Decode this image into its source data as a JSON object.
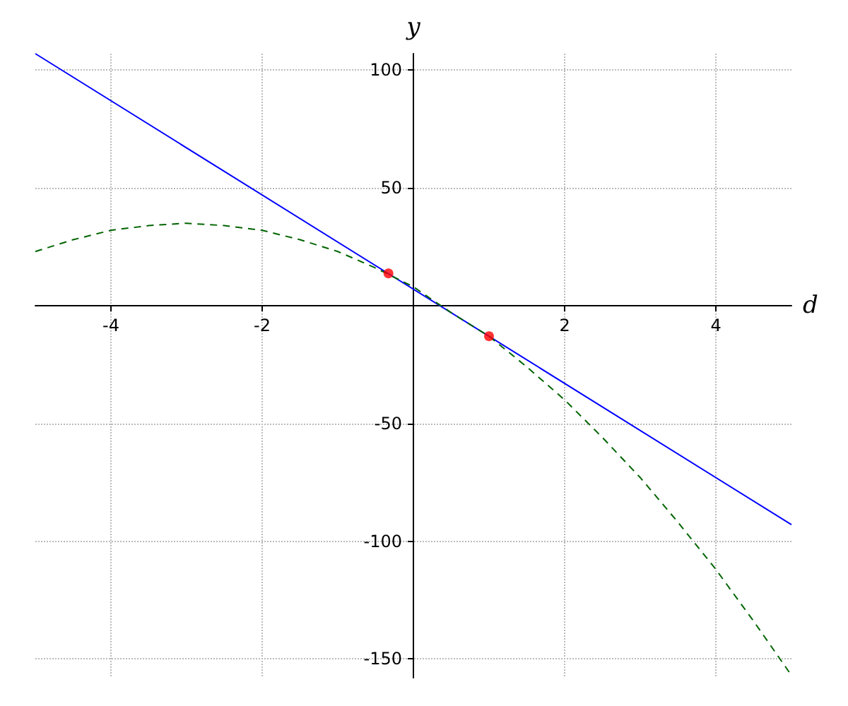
{
  "chart_data": {
    "type": "line",
    "xlabel": "d",
    "ylabel": "y",
    "xlim": [
      -5,
      5
    ],
    "ylim": [
      -158,
      107
    ],
    "xticks": [
      -4,
      -2,
      2,
      4
    ],
    "yticks": [
      -150,
      -100,
      -50,
      50,
      100
    ],
    "grid": true,
    "series": [
      {
        "color": "#0000ff",
        "line_style": "solid",
        "marker": "none",
        "x": [
          -5,
          5
        ],
        "values": [
          107,
          -93
        ]
      },
      {
        "color": "#006400",
        "line_style": "dashed",
        "marker": "none",
        "x": [
          -5,
          -4.5,
          -4,
          -3.5,
          -3,
          -2.5,
          -2,
          -1.5,
          -1,
          -0.5,
          0,
          0.5,
          1,
          1.5,
          2,
          2.5,
          3,
          3.5,
          4,
          4.5,
          5
        ],
        "values": [
          23,
          28,
          32,
          34,
          35,
          34,
          32,
          28,
          23,
          16,
          8,
          -3,
          -13,
          -26,
          -40,
          -56,
          -73,
          -92,
          -112,
          -134,
          -157
        ]
      },
      {
        "type": "scatter",
        "color": "#ff0000",
        "marker": "circle",
        "x": [
          -0.33,
          1
        ],
        "values": [
          13.7,
          -13
        ]
      }
    ]
  }
}
